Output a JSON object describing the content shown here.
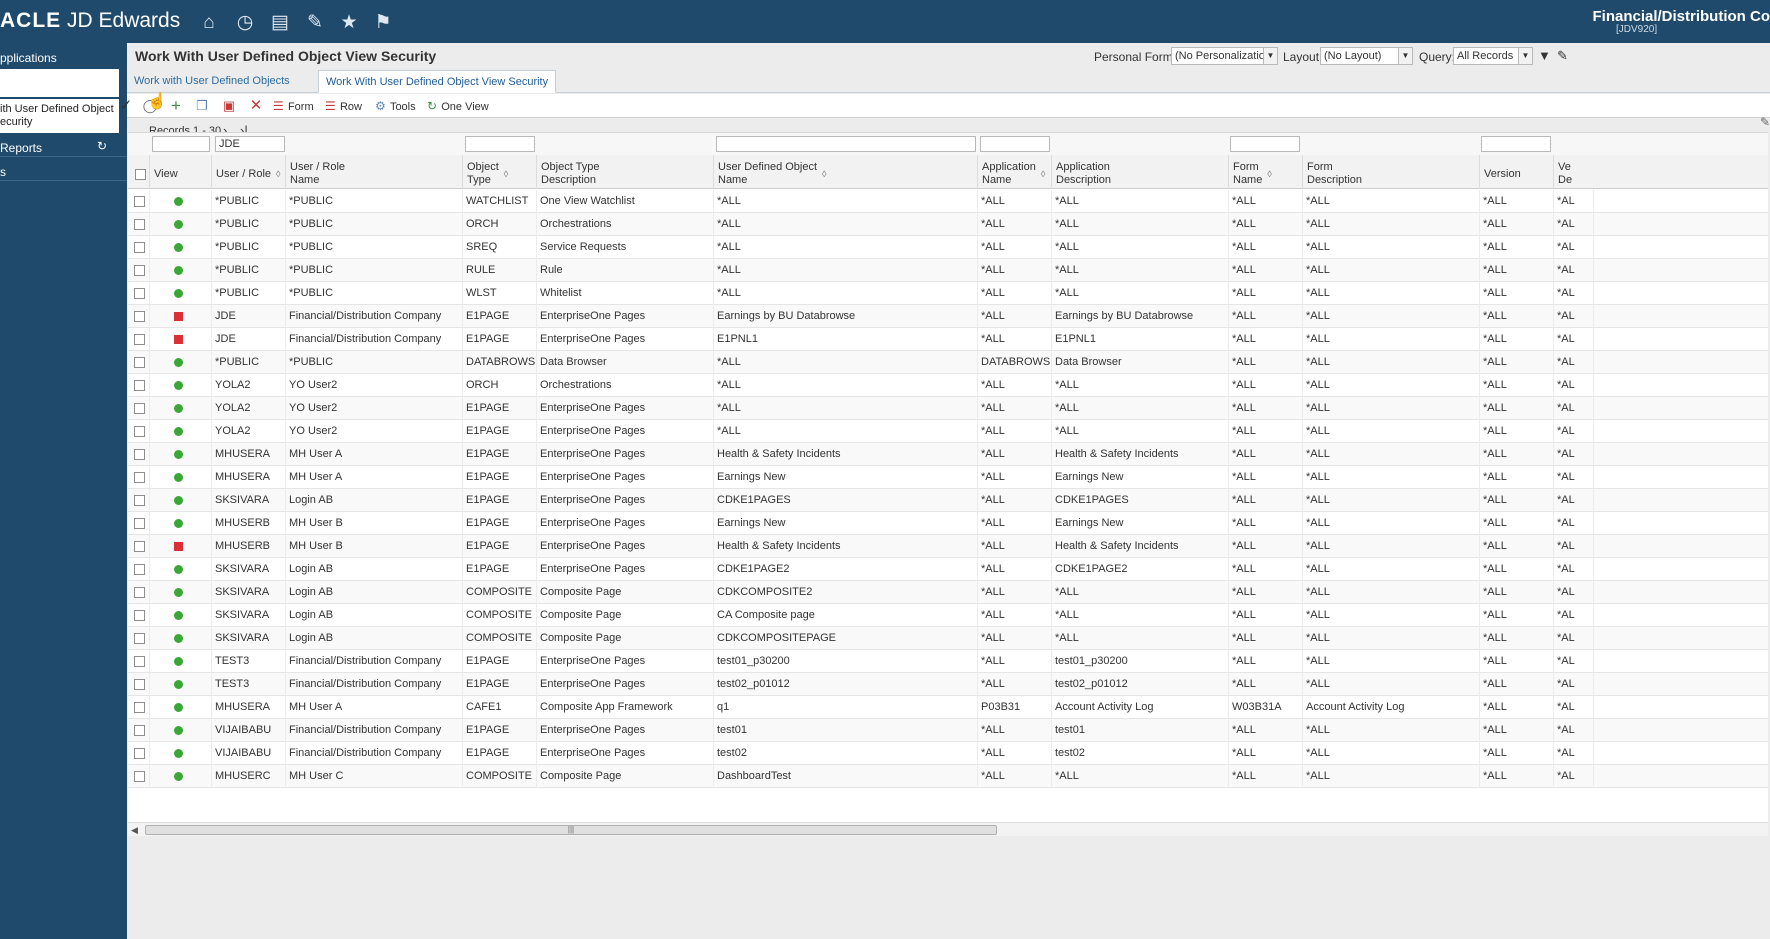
{
  "header": {
    "logo": "ACLE",
    "product": "JD Edwards",
    "env_name": "Financial/Distribution Co",
    "env_code": "[JDV920]",
    "icons": [
      "home-icon",
      "recent-icon",
      "chart-icon",
      "edit-icon",
      "star-icon",
      "flag-icon"
    ]
  },
  "sidebar": {
    "applications": "pplications",
    "active_item": [
      "ith User Defined Object",
      "ecurity"
    ],
    "reports": "Reports",
    "s_item": "s"
  },
  "form": {
    "title": "Work With User Defined Object View Security",
    "personal_form_label": "Personal Form:",
    "personal_form_value": "(No Personalization)",
    "layout_label": "Layout:",
    "layout_value": "(No Layout)",
    "query_label": "Query:",
    "query_value": "All Records"
  },
  "tabs": [
    "Work with User Defined Objects",
    "Work With User Defined Object View Security"
  ],
  "toolbar": {
    "form": "Form",
    "row": "Row",
    "tools": "Tools",
    "one_view": "One View"
  },
  "records": "Records 1 - 30",
  "grid": {
    "filter_user_role": "JDE",
    "headers": {
      "view": "View",
      "user_role": "User / Role",
      "user_role_name": [
        "User / Role",
        "Name"
      ],
      "object_type": [
        "Object",
        "Type"
      ],
      "object_type_desc": [
        "Object Type",
        "Description"
      ],
      "udo_name": [
        "User Defined Object",
        "Name"
      ],
      "app_name": [
        "Application",
        "Name"
      ],
      "app_desc": [
        "Application",
        "Description"
      ],
      "form_name": [
        "Form",
        "Name"
      ],
      "form_desc": [
        "Form",
        "Description"
      ],
      "version": "Version",
      "ve": [
        "Ve",
        "De"
      ]
    },
    "rows": [
      {
        "status": "green",
        "user": "*PUBLIC",
        "user_name": "*PUBLIC",
        "otype": "WATCHLIST",
        "otype_desc": "One View Watchlist",
        "udo": "*ALL",
        "app": "*ALL",
        "app_desc": "*ALL",
        "form": "*ALL",
        "form_desc": "*ALL",
        "version": "*ALL",
        "last": "*AL"
      },
      {
        "status": "green",
        "user": "*PUBLIC",
        "user_name": "*PUBLIC",
        "otype": "ORCH",
        "otype_desc": "Orchestrations",
        "udo": "*ALL",
        "app": "*ALL",
        "app_desc": "*ALL",
        "form": "*ALL",
        "form_desc": "*ALL",
        "version": "*ALL",
        "last": "*AL"
      },
      {
        "status": "green",
        "user": "*PUBLIC",
        "user_name": "*PUBLIC",
        "otype": "SREQ",
        "otype_desc": "Service Requests",
        "udo": "*ALL",
        "app": "*ALL",
        "app_desc": "*ALL",
        "form": "*ALL",
        "form_desc": "*ALL",
        "version": "*ALL",
        "last": "*AL"
      },
      {
        "status": "green",
        "user": "*PUBLIC",
        "user_name": "*PUBLIC",
        "otype": "RULE",
        "otype_desc": "Rule",
        "udo": "*ALL",
        "app": "*ALL",
        "app_desc": "*ALL",
        "form": "*ALL",
        "form_desc": "*ALL",
        "version": "*ALL",
        "last": "*AL"
      },
      {
        "status": "green",
        "user": "*PUBLIC",
        "user_name": "*PUBLIC",
        "otype": "WLST",
        "otype_desc": "Whitelist",
        "udo": "*ALL",
        "app": "*ALL",
        "app_desc": "*ALL",
        "form": "*ALL",
        "form_desc": "*ALL",
        "version": "*ALL",
        "last": "*AL"
      },
      {
        "status": "red",
        "user": "JDE",
        "user_name": "Financial/Distribution Company",
        "otype": "E1PAGE",
        "otype_desc": "EnterpriseOne Pages",
        "udo": "Earnings by BU Databrowse",
        "app": "*ALL",
        "app_desc": "Earnings by BU Databrowse",
        "form": "*ALL",
        "form_desc": "*ALL",
        "version": "*ALL",
        "last": "*AL"
      },
      {
        "status": "red",
        "user": "JDE",
        "user_name": "Financial/Distribution Company",
        "otype": "E1PAGE",
        "otype_desc": "EnterpriseOne Pages",
        "udo": "E1PNL1",
        "app": "*ALL",
        "app_desc": "E1PNL1",
        "form": "*ALL",
        "form_desc": "*ALL",
        "version": "*ALL",
        "last": "*AL"
      },
      {
        "status": "green",
        "user": "*PUBLIC",
        "user_name": "*PUBLIC",
        "otype": "DATABROWSE",
        "otype_desc": "Data Browser",
        "udo": "*ALL",
        "app": "DATABROWSE",
        "app_desc": "Data Browser",
        "form": "*ALL",
        "form_desc": "*ALL",
        "version": "*ALL",
        "last": "*AL"
      },
      {
        "status": "green",
        "user": "YOLA2",
        "user_name": "YO User2",
        "otype": "ORCH",
        "otype_desc": "Orchestrations",
        "udo": "*ALL",
        "app": "*ALL",
        "app_desc": "*ALL",
        "form": "*ALL",
        "form_desc": "*ALL",
        "version": "*ALL",
        "last": "*AL"
      },
      {
        "status": "green",
        "user": "YOLA2",
        "user_name": "YO User2",
        "otype": "E1PAGE",
        "otype_desc": "EnterpriseOne Pages",
        "udo": "*ALL",
        "app": "*ALL",
        "app_desc": "*ALL",
        "form": "*ALL",
        "form_desc": "*ALL",
        "version": "*ALL",
        "last": "*AL"
      },
      {
        "status": "green",
        "user": "YOLA2",
        "user_name": "YO User2",
        "otype": "E1PAGE",
        "otype_desc": "EnterpriseOne Pages",
        "udo": "*ALL",
        "app": "*ALL",
        "app_desc": "*ALL",
        "form": "*ALL",
        "form_desc": "*ALL",
        "version": "*ALL",
        "last": "*AL"
      },
      {
        "status": "green",
        "user": "MHUSERA",
        "user_name": "MH User A",
        "otype": "E1PAGE",
        "otype_desc": "EnterpriseOne Pages",
        "udo": "Health & Safety Incidents",
        "app": "*ALL",
        "app_desc": "Health & Safety Incidents",
        "form": "*ALL",
        "form_desc": "*ALL",
        "version": "*ALL",
        "last": "*AL"
      },
      {
        "status": "green",
        "user": "MHUSERA",
        "user_name": "MH User A",
        "otype": "E1PAGE",
        "otype_desc": "EnterpriseOne Pages",
        "udo": "Earnings New",
        "app": "*ALL",
        "app_desc": "Earnings New",
        "form": "*ALL",
        "form_desc": "*ALL",
        "version": "*ALL",
        "last": "*AL"
      },
      {
        "status": "green",
        "user": "SKSIVARA",
        "user_name": "Login AB",
        "otype": "E1PAGE",
        "otype_desc": "EnterpriseOne Pages",
        "udo": "CDKE1PAGES",
        "app": "*ALL",
        "app_desc": "CDKE1PAGES",
        "form": "*ALL",
        "form_desc": "*ALL",
        "version": "*ALL",
        "last": "*AL"
      },
      {
        "status": "green",
        "user": "MHUSERB",
        "user_name": "MH User B",
        "otype": "E1PAGE",
        "otype_desc": "EnterpriseOne Pages",
        "udo": "Earnings New",
        "app": "*ALL",
        "app_desc": "Earnings New",
        "form": "*ALL",
        "form_desc": "*ALL",
        "version": "*ALL",
        "last": "*AL"
      },
      {
        "status": "red",
        "user": "MHUSERB",
        "user_name": "MH User B",
        "otype": "E1PAGE",
        "otype_desc": "EnterpriseOne Pages",
        "udo": "Health & Safety Incidents",
        "app": "*ALL",
        "app_desc": "Health & Safety Incidents",
        "form": "*ALL",
        "form_desc": "*ALL",
        "version": "*ALL",
        "last": "*AL"
      },
      {
        "status": "green",
        "user": "SKSIVARA",
        "user_name": "Login AB",
        "otype": "E1PAGE",
        "otype_desc": "EnterpriseOne Pages",
        "udo": "CDKE1PAGE2",
        "app": "*ALL",
        "app_desc": "CDKE1PAGE2",
        "form": "*ALL",
        "form_desc": "*ALL",
        "version": "*ALL",
        "last": "*AL"
      },
      {
        "status": "green",
        "user": "SKSIVARA",
        "user_name": "Login AB",
        "otype": "COMPOSITE",
        "otype_desc": "Composite Page",
        "udo": "CDKCOMPOSITE2",
        "app": "*ALL",
        "app_desc": "*ALL",
        "form": "*ALL",
        "form_desc": "*ALL",
        "version": "*ALL",
        "last": "*AL"
      },
      {
        "status": "green",
        "user": "SKSIVARA",
        "user_name": "Login AB",
        "otype": "COMPOSITE",
        "otype_desc": "Composite Page",
        "udo": "CA Composite page",
        "app": "*ALL",
        "app_desc": "*ALL",
        "form": "*ALL",
        "form_desc": "*ALL",
        "version": "*ALL",
        "last": "*AL"
      },
      {
        "status": "green",
        "user": "SKSIVARA",
        "user_name": "Login AB",
        "otype": "COMPOSITE",
        "otype_desc": "Composite Page",
        "udo": "CDKCOMPOSITEPAGE",
        "app": "*ALL",
        "app_desc": "*ALL",
        "form": "*ALL",
        "form_desc": "*ALL",
        "version": "*ALL",
        "last": "*AL"
      },
      {
        "status": "green",
        "user": "TEST3",
        "user_name": "Financial/Distribution Company",
        "otype": "E1PAGE",
        "otype_desc": "EnterpriseOne Pages",
        "udo": "test01_p30200",
        "app": "*ALL",
        "app_desc": "test01_p30200",
        "form": "*ALL",
        "form_desc": "*ALL",
        "version": "*ALL",
        "last": "*AL"
      },
      {
        "status": "green",
        "user": "TEST3",
        "user_name": "Financial/Distribution Company",
        "otype": "E1PAGE",
        "otype_desc": "EnterpriseOne Pages",
        "udo": "test02_p01012",
        "app": "*ALL",
        "app_desc": "test02_p01012",
        "form": "*ALL",
        "form_desc": "*ALL",
        "version": "*ALL",
        "last": "*AL"
      },
      {
        "status": "green",
        "user": "MHUSERA",
        "user_name": "MH User A",
        "otype": "CAFE1",
        "otype_desc": "Composite App Framework",
        "udo": "q1",
        "app": "P03B31",
        "app_desc": "Account Activity Log",
        "form": "W03B31A",
        "form_desc": "Account Activity Log",
        "version": "*ALL",
        "last": "*AL"
      },
      {
        "status": "green",
        "user": "VIJAIBABU",
        "user_name": "Financial/Distribution Company",
        "otype": "E1PAGE",
        "otype_desc": "EnterpriseOne Pages",
        "udo": "test01",
        "app": "*ALL",
        "app_desc": "test01",
        "form": "*ALL",
        "form_desc": "*ALL",
        "version": "*ALL",
        "last": "*AL"
      },
      {
        "status": "green",
        "user": "VIJAIBABU",
        "user_name": "Financial/Distribution Company",
        "otype": "E1PAGE",
        "otype_desc": "EnterpriseOne Pages",
        "udo": "test02",
        "app": "*ALL",
        "app_desc": "test02",
        "form": "*ALL",
        "form_desc": "*ALL",
        "version": "*ALL",
        "last": "*AL"
      },
      {
        "status": "green",
        "user": "MHUSERC",
        "user_name": "MH User C",
        "otype": "COMPOSITE",
        "otype_desc": "Composite Page",
        "udo": "DashboardTest",
        "app": "*ALL",
        "app_desc": "*ALL",
        "form": "*ALL",
        "form_desc": "*ALL",
        "version": "*ALL",
        "last": "*AL"
      }
    ]
  },
  "colors": {
    "header_bg": "#1f4a6b",
    "status_green": "#3aa635",
    "status_red": "#d9303a",
    "tab_text": "#2b6ca3"
  }
}
